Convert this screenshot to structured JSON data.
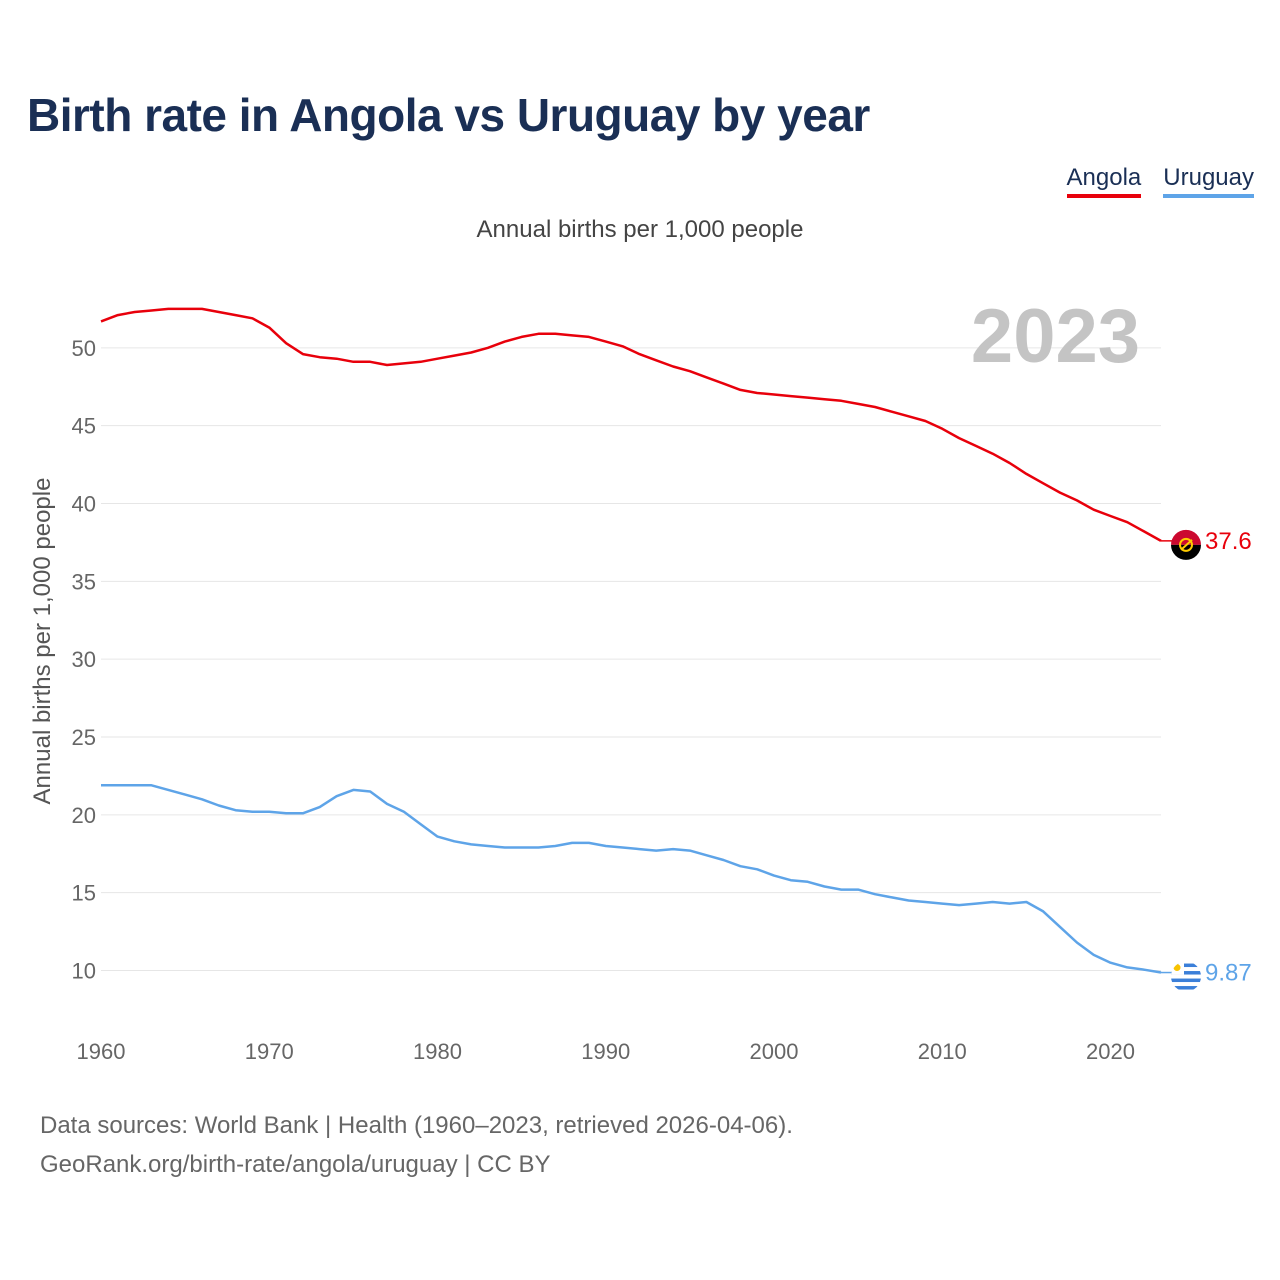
{
  "title": "Birth rate in Angola vs Uruguay by year",
  "subtitle": "Annual births per 1,000 people",
  "footer": {
    "line1": "Data sources: World Bank | Health (1960–2023, retrieved 2026-04-06).",
    "line2": "GeoRank.org/birth-rate/angola/uruguay | CC BY"
  },
  "legend": [
    {
      "label": "Angola",
      "color": "#e8000b"
    },
    {
      "label": "Uruguay",
      "color": "#5ea4e8"
    }
  ],
  "chart_data": {
    "type": "line",
    "title": "Birth rate in Angola vs Uruguay by year",
    "xlabel": "",
    "ylabel": "Annual births per 1,000 people",
    "year_label": "2023",
    "xlim": [
      1960,
      2023
    ],
    "ylim": [
      6.5,
      55
    ],
    "xticks": [
      1960,
      1970,
      1980,
      1990,
      2000,
      2010,
      2020
    ],
    "yticks": [
      10,
      15,
      20,
      25,
      30,
      35,
      40,
      45,
      50
    ],
    "x": [
      1960,
      1961,
      1962,
      1963,
      1964,
      1965,
      1966,
      1967,
      1968,
      1969,
      1970,
      1971,
      1972,
      1973,
      1974,
      1975,
      1976,
      1977,
      1978,
      1979,
      1980,
      1981,
      1982,
      1983,
      1984,
      1985,
      1986,
      1987,
      1988,
      1989,
      1990,
      1991,
      1992,
      1993,
      1994,
      1995,
      1996,
      1997,
      1998,
      1999,
      2000,
      2001,
      2002,
      2003,
      2004,
      2005,
      2006,
      2007,
      2008,
      2009,
      2010,
      2011,
      2012,
      2013,
      2014,
      2015,
      2016,
      2017,
      2018,
      2019,
      2020,
      2021,
      2022,
      2023
    ],
    "series": [
      {
        "name": "Angola",
        "color": "#e8000b",
        "end_label": "37.6",
        "values": [
          51.7,
          52.1,
          52.3,
          52.4,
          52.5,
          52.5,
          52.5,
          52.3,
          52.1,
          51.9,
          51.3,
          50.3,
          49.6,
          49.4,
          49.3,
          49.1,
          49.1,
          48.9,
          49.0,
          49.1,
          49.3,
          49.5,
          49.7,
          50.0,
          50.4,
          50.7,
          50.9,
          50.9,
          50.8,
          50.7,
          50.4,
          50.1,
          49.6,
          49.2,
          48.8,
          48.5,
          48.1,
          47.7,
          47.3,
          47.1,
          47.0,
          46.9,
          46.8,
          46.7,
          46.6,
          46.4,
          46.2,
          45.9,
          45.6,
          45.3,
          44.8,
          44.2,
          43.7,
          43.2,
          42.6,
          41.9,
          41.3,
          40.7,
          40.2,
          39.6,
          39.2,
          38.8,
          38.2,
          37.6
        ]
      },
      {
        "name": "Uruguay",
        "color": "#5ea4e8",
        "end_label": "9.87",
        "values": [
          21.9,
          21.9,
          21.9,
          21.9,
          21.6,
          21.3,
          21.0,
          20.6,
          20.3,
          20.2,
          20.2,
          20.1,
          20.1,
          20.5,
          21.2,
          21.6,
          21.5,
          20.7,
          20.2,
          19.4,
          18.6,
          18.3,
          18.1,
          18.0,
          17.9,
          17.9,
          17.9,
          18.0,
          18.2,
          18.2,
          18.0,
          17.9,
          17.8,
          17.7,
          17.8,
          17.7,
          17.4,
          17.1,
          16.7,
          16.5,
          16.1,
          15.8,
          15.7,
          15.4,
          15.2,
          15.2,
          14.9,
          14.7,
          14.5,
          14.4,
          14.3,
          14.2,
          14.3,
          14.4,
          14.3,
          14.4,
          13.8,
          12.8,
          11.8,
          11.0,
          10.5,
          10.2,
          10.05,
          9.87
        ]
      }
    ]
  }
}
